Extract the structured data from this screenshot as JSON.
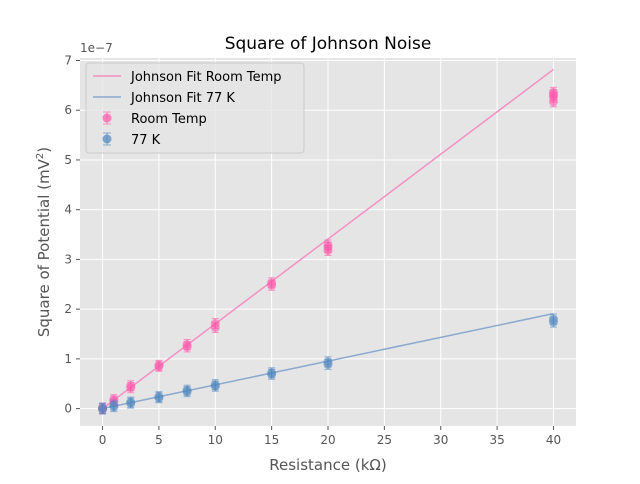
{
  "chart_data": {
    "type": "scatter",
    "title": "Square of Johnson Noise",
    "xlabel": "Resistance (kΩ)",
    "ylabel_main": "Square of Potential (mV",
    "ylabel_sup": "2",
    "ylabel_tail": ")",
    "ylabel": "Square of Potential (mV²)",
    "offset_text": "1e−7",
    "xlim": [
      -2,
      42
    ],
    "ylim": [
      -0.35,
      7.05
    ],
    "xticks": [
      0,
      5,
      10,
      15,
      20,
      25,
      30,
      35,
      40
    ],
    "yticks": [
      0,
      1,
      2,
      3,
      4,
      5,
      6,
      7
    ],
    "grid": true,
    "legend_position": "top-left",
    "series": [
      {
        "name": "Johnson Fit Room Temp",
        "kind": "line",
        "color": "#F48FC3",
        "x": [
          0,
          40
        ],
        "y": [
          0,
          6.82
        ]
      },
      {
        "name": "Johnson Fit 77 K",
        "kind": "line",
        "color": "#8AAAD0",
        "x": [
          0,
          40
        ],
        "y": [
          0,
          1.91
        ]
      },
      {
        "name": "Room Temp",
        "kind": "points",
        "color": "#FF55AA",
        "x": [
          0,
          0,
          1,
          1,
          2.5,
          2.5,
          5,
          5,
          7.5,
          7.5,
          10,
          10,
          15,
          15,
          20,
          20,
          20,
          40,
          40,
          40,
          40
        ],
        "y": [
          0.0,
          0.01,
          0.15,
          0.18,
          0.42,
          0.46,
          0.85,
          0.87,
          1.24,
          1.29,
          1.63,
          1.71,
          2.48,
          2.53,
          3.18,
          3.24,
          3.29,
          6.17,
          6.26,
          6.31,
          6.36
        ]
      },
      {
        "name": "77 K",
        "kind": "points",
        "color": "#4F86C0",
        "x": [
          0,
          0,
          1,
          1,
          2.5,
          2.5,
          5,
          5,
          7.5,
          7.5,
          10,
          10,
          15,
          15,
          20,
          20,
          40,
          40
        ],
        "y": [
          -0.01,
          0.01,
          0.04,
          0.07,
          0.11,
          0.13,
          0.22,
          0.24,
          0.34,
          0.37,
          0.45,
          0.48,
          0.69,
          0.72,
          0.89,
          0.94,
          1.74,
          1.8
        ]
      }
    ]
  }
}
